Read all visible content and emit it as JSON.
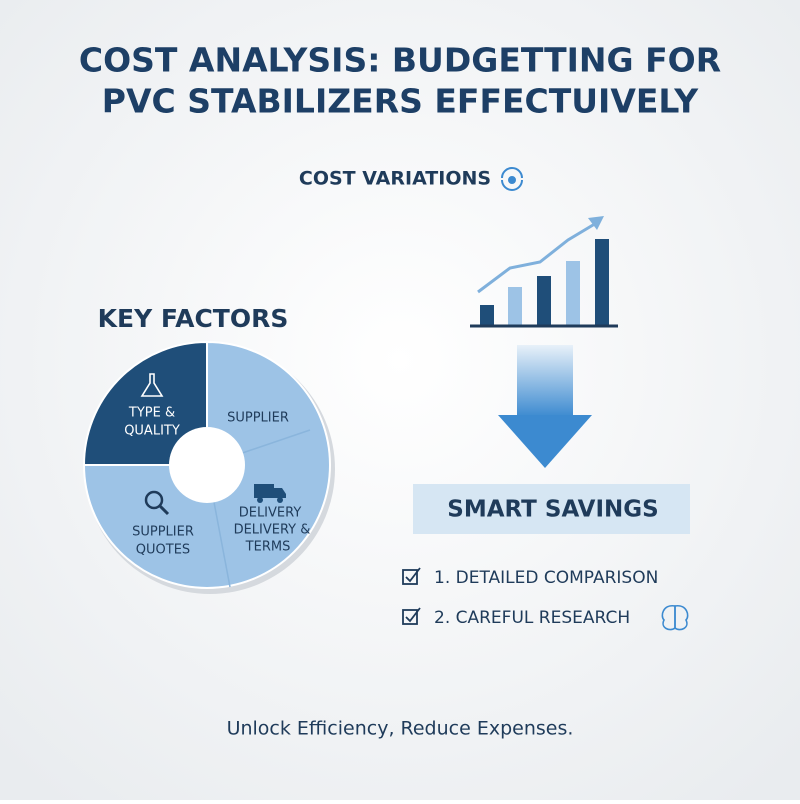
{
  "header": {
    "title_lines": [
      "COST ANALYSIS: BUDGETTING FOR",
      "PVC STABILIZERS EFFECTUIVELY"
    ]
  },
  "cost_variations": {
    "label": "COST VARIATIONS"
  },
  "key_factors": {
    "title": "KEY FACTORS",
    "segments": [
      {
        "lines": [
          "TYPE &",
          "QUALITY"
        ]
      },
      {
        "lines": [
          "SUPPLIER"
        ]
      },
      {
        "lines": [
          "DELIVERY",
          "DELIVERY &",
          "TERMS"
        ]
      },
      {
        "lines": [
          "SUPPLIER",
          "QUOTES"
        ]
      }
    ]
  },
  "smart_savings": {
    "title": "SMART SAVINGS",
    "items": [
      "1. DETAILED COMPARISON",
      "2. CAREFUL RESEARCH"
    ]
  },
  "footer": {
    "tagline": "Unlock Efficiency, Reduce Expenses."
  }
}
